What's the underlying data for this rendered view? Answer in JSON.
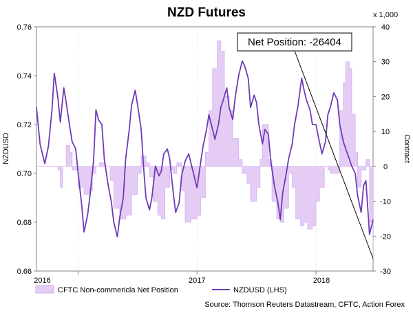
{
  "chart_data": {
    "type": "line",
    "title": "NZD Futures",
    "ylabel": "NZDUSD",
    "y2label": "Contract",
    "y2_multiplier_label": "x 1,000",
    "ylim": [
      0.66,
      0.76
    ],
    "y2lim": [
      -30,
      40
    ],
    "yticks": [
      "0.66",
      "0.68",
      "0.70",
      "0.72",
      "0.74",
      "0.76"
    ],
    "y2ticks": [
      "-30",
      "-20",
      "-10",
      "0",
      "10",
      "20",
      "30",
      "40"
    ],
    "x_range": [
      2015.65,
      2018.48
    ],
    "xticks": [
      {
        "x": 2016.0,
        "label": "2016"
      },
      {
        "x": 2017.0,
        "label": "2017"
      },
      {
        "x": 2018.0,
        "label": "2018"
      }
    ],
    "grid": false,
    "legend": "bottom-left",
    "annotation": {
      "text": "Net Position: -26404",
      "x": 2018.48,
      "y2": -26.4
    },
    "series": [
      {
        "name": "CFTC Non-commericla Net Position",
        "axis": "right",
        "style": "area",
        "color": "#e5ccf5",
        "edge_color": "#d4b0ee",
        "x": [
          2015.65,
          2015.72,
          2015.78,
          2015.83,
          2015.85,
          2015.87,
          2015.9,
          2015.93,
          2015.95,
          2016.0,
          2016.05,
          2016.1,
          2016.12,
          2016.15,
          2016.18,
          2016.22,
          2016.27,
          2016.3,
          2016.35,
          2016.4,
          2016.45,
          2016.5,
          2016.53,
          2016.57,
          2016.6,
          2016.63,
          2016.67,
          2016.7,
          2016.73,
          2016.77,
          2016.8,
          2016.83,
          2016.87,
          2016.9,
          2016.95,
          2017.0,
          2017.03,
          2017.07,
          2017.1,
          2017.13,
          2017.17,
          2017.2,
          2017.23,
          2017.27,
          2017.3,
          2017.35,
          2017.38,
          2017.42,
          2017.45,
          2017.5,
          2017.53,
          2017.55,
          2017.6,
          2017.63,
          2017.67,
          2017.7,
          2017.73,
          2017.77,
          2017.8,
          2017.83,
          2017.87,
          2017.9,
          2017.93,
          2017.97,
          2018.0,
          2018.03,
          2018.07,
          2018.1,
          2018.12,
          2018.15,
          2018.2,
          2018.23,
          2018.25,
          2018.28,
          2018.3,
          2018.33,
          2018.35,
          2018.38,
          2018.42,
          2018.45,
          2018.48
        ],
        "values": [
          0,
          0,
          0,
          -1,
          -6,
          0,
          6,
          4,
          -1,
          -6,
          -8,
          -7,
          -2,
          0,
          1,
          0,
          -4,
          -12,
          -15,
          -14,
          -8,
          -2,
          3,
          1,
          -3,
          -10,
          -14,
          -15,
          -6,
          -1,
          -2,
          1,
          -7,
          -16,
          -15,
          -14,
          -9,
          4,
          16,
          28,
          36,
          33,
          20,
          16,
          8,
          2,
          -2,
          -5,
          -10,
          -6,
          2,
          12,
          2,
          -10,
          -15,
          -16,
          -12,
          -2,
          -6,
          -15,
          -17,
          -16,
          -18,
          -17,
          -10,
          -6,
          0,
          -1,
          -2,
          -2,
          16,
          24,
          30,
          28,
          15,
          4,
          -6,
          -1,
          2,
          -16,
          -26.4
        ]
      },
      {
        "name": "NZDUSD (LHS)",
        "axis": "left",
        "style": "line",
        "color": "#6e3bb5",
        "x": [
          2015.65,
          2015.68,
          2015.72,
          2015.75,
          2015.78,
          2015.8,
          2015.83,
          2015.85,
          2015.88,
          2015.9,
          2015.93,
          2015.95,
          2015.98,
          2016.0,
          2016.03,
          2016.05,
          2016.08,
          2016.1,
          2016.13,
          2016.15,
          2016.17,
          2016.2,
          2016.22,
          2016.25,
          2016.28,
          2016.3,
          2016.33,
          2016.35,
          2016.38,
          2016.4,
          2016.43,
          2016.45,
          2016.48,
          2016.5,
          2016.53,
          2016.55,
          2016.57,
          2016.6,
          2016.62,
          2016.65,
          2016.68,
          2016.7,
          2016.72,
          2016.75,
          2016.77,
          2016.8,
          2016.82,
          2016.85,
          2016.87,
          2016.9,
          2016.93,
          2016.95,
          2016.98,
          2017.0,
          2017.02,
          2017.05,
          2017.08,
          2017.1,
          2017.12,
          2017.15,
          2017.18,
          2017.2,
          2017.22,
          2017.25,
          2017.27,
          2017.3,
          2017.32,
          2017.35,
          2017.38,
          2017.4,
          2017.43,
          2017.45,
          2017.48,
          2017.5,
          2017.52,
          2017.55,
          2017.57,
          2017.6,
          2017.62,
          2017.65,
          2017.68,
          2017.7,
          2017.72,
          2017.75,
          2017.77,
          2017.8,
          2017.82,
          2017.85,
          2017.88,
          2017.9,
          2017.92,
          2017.95,
          2017.97,
          2018.0,
          2018.02,
          2018.05,
          2018.08,
          2018.1,
          2018.12,
          2018.15,
          2018.18,
          2018.2,
          2018.23,
          2018.25,
          2018.28,
          2018.3,
          2018.33,
          2018.35,
          2018.38,
          2018.4,
          2018.42,
          2018.45,
          2018.48
        ],
        "values": [
          0.727,
          0.712,
          0.704,
          0.711,
          0.726,
          0.741,
          0.731,
          0.721,
          0.735,
          0.729,
          0.719,
          0.713,
          0.71,
          0.7,
          0.687,
          0.676,
          0.683,
          0.691,
          0.705,
          0.726,
          0.722,
          0.72,
          0.706,
          0.696,
          0.688,
          0.68,
          0.674,
          0.682,
          0.69,
          0.706,
          0.718,
          0.728,
          0.734,
          0.728,
          0.718,
          0.703,
          0.69,
          0.685,
          0.69,
          0.703,
          0.699,
          0.701,
          0.708,
          0.71,
          0.706,
          0.692,
          0.684,
          0.688,
          0.699,
          0.705,
          0.708,
          0.704,
          0.698,
          0.694,
          0.701,
          0.711,
          0.718,
          0.724,
          0.72,
          0.714,
          0.72,
          0.727,
          0.73,
          0.735,
          0.727,
          0.722,
          0.731,
          0.74,
          0.746,
          0.744,
          0.739,
          0.727,
          0.732,
          0.729,
          0.72,
          0.712,
          0.718,
          0.716,
          0.705,
          0.695,
          0.688,
          0.681,
          0.692,
          0.7,
          0.706,
          0.712,
          0.72,
          0.728,
          0.739,
          0.734,
          0.73,
          0.726,
          0.72,
          0.72,
          0.715,
          0.708,
          0.713,
          0.724,
          0.727,
          0.733,
          0.73,
          0.72,
          0.713,
          0.71,
          0.706,
          0.703,
          0.7,
          0.691,
          0.684,
          0.695,
          0.697,
          0.675,
          0.681
        ]
      }
    ]
  },
  "legend": {
    "items": [
      "CFTC Non-commericla Net Position",
      "NZDUSD (LHS)"
    ]
  },
  "source": "Source: Thomson Reuters Datastream, CFTC, Action Forex"
}
